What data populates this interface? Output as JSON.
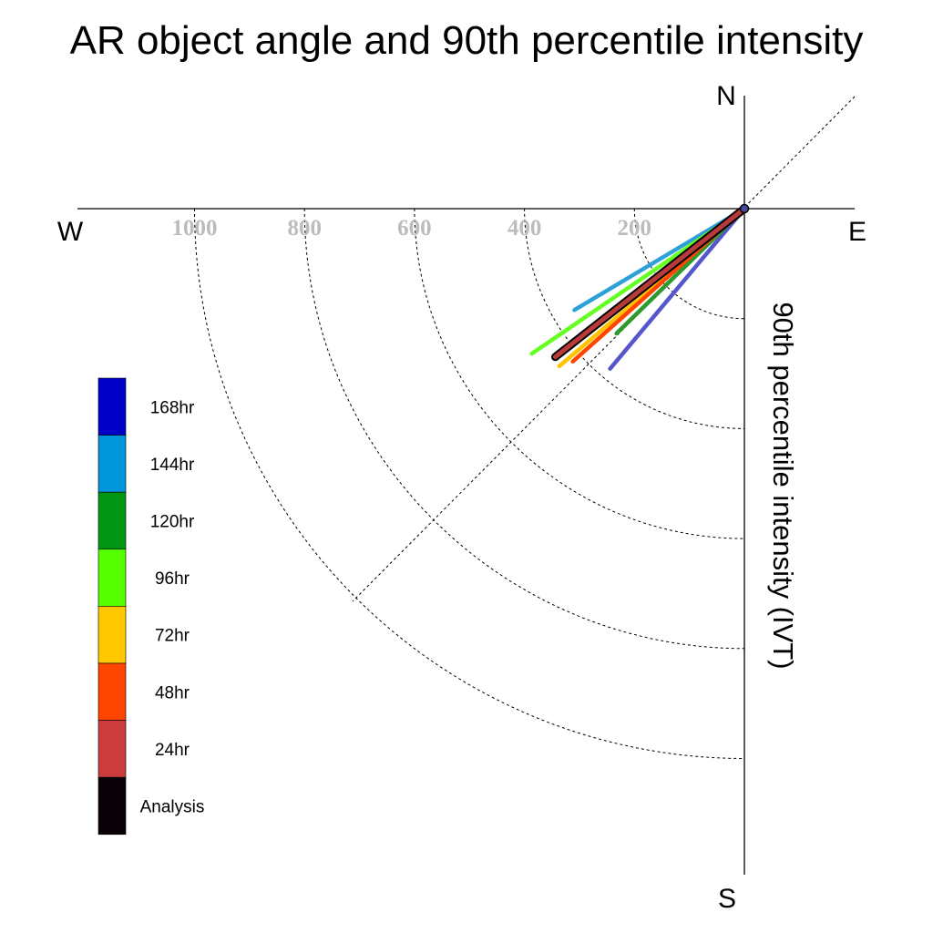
{
  "chart_data": {
    "type": "polar_vectors",
    "title": "AR object angle and 90th percentile intensity",
    "ylabel": "90th percentile intensity (IVT)",
    "compass": {
      "north": "N",
      "south": "S",
      "east": "E",
      "west": "W"
    },
    "radial_ticks": [
      200,
      400,
      600,
      800,
      1000
    ],
    "radial_max": 1200,
    "series": [
      {
        "name": "168hr",
        "color": "#5555cc",
        "angle_deg": 220.0,
        "intensity": 380
      },
      {
        "name": "144hr",
        "color": "#2ea0d8",
        "angle_deg": 239.2,
        "intensity": 360
      },
      {
        "name": "120hr",
        "color": "#2c9a2c",
        "angle_deg": 225.7,
        "intensity": 325
      },
      {
        "name": "96hr",
        "color": "#66ff22",
        "angle_deg": 235.7,
        "intensity": 468
      },
      {
        "name": "72hr",
        "color": "#ffc400",
        "angle_deg": 229.6,
        "intensity": 442
      },
      {
        "name": "48hr",
        "color": "#ff4500",
        "angle_deg": 228.3,
        "intensity": 418
      },
      {
        "name": "24hr",
        "color": "#cc3b3b",
        "angle_deg": 231.9,
        "intensity": 437
      },
      {
        "name": "Analysis",
        "color": "#0a0008",
        "angle_deg": 231.9,
        "intensity": 437
      }
    ],
    "legend": {
      "placement": "left",
      "items": [
        {
          "label": "168hr",
          "color": "#0000c8"
        },
        {
          "label": "144hr",
          "color": "#0096dc"
        },
        {
          "label": "120hr",
          "color": "#009614"
        },
        {
          "label": "96hr",
          "color": "#55ff00"
        },
        {
          "label": "72hr",
          "color": "#ffc800"
        },
        {
          "label": "48hr",
          "color": "#ff4600"
        },
        {
          "label": "24hr",
          "color": "#cc3c3c"
        },
        {
          "label": "Analysis",
          "color": "#0a0008"
        }
      ]
    }
  }
}
